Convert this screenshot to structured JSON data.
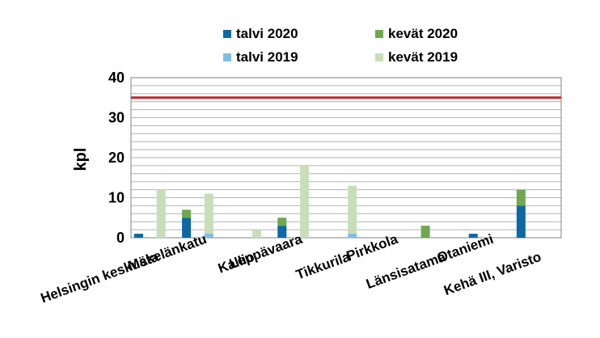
{
  "chart_data": {
    "type": "bar",
    "title": "",
    "xlabel": "",
    "ylabel": "kpl",
    "ylim": [
      0,
      40
    ],
    "yticks": [
      0,
      10,
      20,
      30,
      40
    ],
    "grid": true,
    "legend_position": "top",
    "categories": [
      "Helsingin keskusta",
      "Mäkelänkatu",
      "Kallio",
      "Leppävaara",
      "Tikkurila",
      "Pirkkola",
      "Länsisatama",
      "Otaniemi",
      "Kehä III, Varisto"
    ],
    "series": [
      {
        "name": "talvi 2020",
        "group": "2020",
        "color": "#0e68a4",
        "values": [
          1,
          5,
          0,
          3,
          0,
          0,
          0,
          1,
          8
        ]
      },
      {
        "name": "kevät 2020",
        "group": "2020",
        "color": "#6ea94f",
        "values": [
          0,
          2,
          0,
          2,
          0,
          0,
          3,
          0,
          4
        ]
      },
      {
        "name": "talvi 2019",
        "group": "2019",
        "color": "#7fbde5",
        "values": [
          0,
          1,
          0,
          0,
          1,
          0,
          0,
          0,
          0
        ]
      },
      {
        "name": "kevät 2019",
        "group": "2019",
        "color": "#c6dfb9",
        "values": [
          12,
          10,
          2,
          18,
          12,
          0,
          0,
          0,
          0
        ]
      }
    ],
    "reference_line": {
      "value": 35,
      "color": "#c0292b"
    }
  }
}
